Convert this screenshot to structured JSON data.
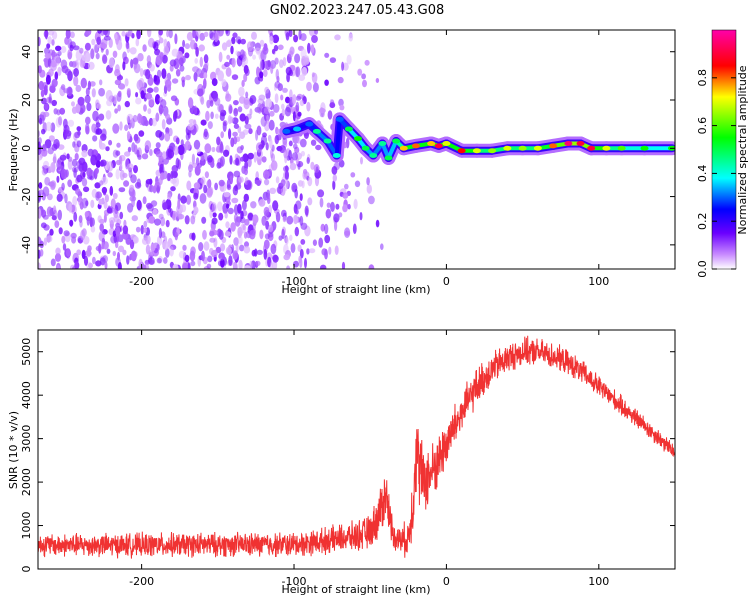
{
  "title": "GN02.2023.247.05.43.G08",
  "chart_data": [
    {
      "type": "heatmap",
      "xlabel": "Height of straight line (km)",
      "ylabel": "Frequency (Hz)",
      "xlim": [
        -268,
        150
      ],
      "ylim": [
        -50,
        49
      ],
      "x_ticks": [
        -200,
        -100,
        0,
        100
      ],
      "x_tick_labels": [
        "-200",
        "-100",
        "0",
        "100"
      ],
      "y_ticks": [
        -40,
        -20,
        0,
        20,
        40
      ],
      "y_tick_labels": [
        "-40",
        "-20",
        "0",
        "20",
        "40"
      ],
      "colorbar": {
        "label": "Normalized spectral amplitude",
        "range": [
          0,
          1
        ],
        "ticks": [
          0.0,
          0.2,
          0.4,
          0.6,
          0.8
        ],
        "tick_labels": [
          "0.0",
          "0.2",
          "0.4",
          "0.6",
          "0.8"
        ],
        "colors": [
          "#ffffff",
          "#7a00ff",
          "#0000ff",
          "#00ffff",
          "#00ff00",
          "#ffff00",
          "#ff0000",
          "#ff00ff"
        ]
      },
      "noise_region": {
        "x_range": [
          -268,
          -40
        ],
        "typical_amplitude": 0.1
      },
      "signal_track": [
        {
          "x": -105,
          "f": 7,
          "amp": 0.3
        },
        {
          "x": -98,
          "f": 8,
          "amp": 0.35
        },
        {
          "x": -90,
          "f": 10,
          "amp": 0.3
        },
        {
          "x": -85,
          "f": 7,
          "amp": 0.45
        },
        {
          "x": -78,
          "f": 3,
          "amp": 0.45
        },
        {
          "x": -72,
          "f": -3,
          "amp": 0.4
        },
        {
          "x": -70,
          "f": 12,
          "amp": 0.3
        },
        {
          "x": -64,
          "f": 8,
          "amp": 0.5
        },
        {
          "x": -58,
          "f": 4,
          "amp": 0.55
        },
        {
          "x": -53,
          "f": 0,
          "amp": 0.5
        },
        {
          "x": -48,
          "f": -3,
          "amp": 0.45
        },
        {
          "x": -42,
          "f": 2,
          "amp": 0.45
        },
        {
          "x": -38,
          "f": -4,
          "amp": 0.5
        },
        {
          "x": -33,
          "f": 3,
          "amp": 0.5
        },
        {
          "x": -28,
          "f": 0,
          "amp": 0.75
        },
        {
          "x": -20,
          "f": 1,
          "amp": 0.8
        },
        {
          "x": -10,
          "f": 2,
          "amp": 0.75
        },
        {
          "x": -5,
          "f": 1,
          "amp": 0.9
        },
        {
          "x": 0,
          "f": 2,
          "amp": 0.7
        },
        {
          "x": 10,
          "f": -1,
          "amp": 0.85
        },
        {
          "x": 20,
          "f": -1,
          "amp": 0.7
        },
        {
          "x": 30,
          "f": -1,
          "amp": 0.65
        },
        {
          "x": 40,
          "f": 0,
          "amp": 0.7
        },
        {
          "x": 50,
          "f": 0,
          "amp": 0.65
        },
        {
          "x": 60,
          "f": 0,
          "amp": 0.7
        },
        {
          "x": 70,
          "f": 1,
          "amp": 0.8
        },
        {
          "x": 80,
          "f": 2,
          "amp": 0.95
        },
        {
          "x": 88,
          "f": 2,
          "amp": 0.9
        },
        {
          "x": 95,
          "f": 0,
          "amp": 0.9
        },
        {
          "x": 105,
          "f": 0,
          "amp": 0.7
        },
        {
          "x": 115,
          "f": 0,
          "amp": 0.6
        },
        {
          "x": 130,
          "f": 0,
          "amp": 0.55
        },
        {
          "x": 148,
          "f": 0,
          "amp": 0.55
        }
      ]
    },
    {
      "type": "line",
      "xlabel": "Height of straight line (km)",
      "ylabel": "SNR (10 * v/v)",
      "xlim": [
        -268,
        150
      ],
      "ylim": [
        0,
        5500
      ],
      "x_ticks": [
        -200,
        -100,
        0,
        100
      ],
      "x_tick_labels": [
        "-200",
        "-100",
        "0",
        "100"
      ],
      "y_ticks": [
        0,
        1000,
        2000,
        3000,
        4000,
        5000
      ],
      "y_tick_labels": [
        "0",
        "1000",
        "2000",
        "3000",
        "4000",
        "5000"
      ],
      "color": "#f03232",
      "envelope": {
        "x": [
          -268,
          -200,
          -150,
          -100,
          -80,
          -60,
          -50,
          -45,
          -40,
          -38,
          -35,
          -30,
          -25,
          -22,
          -20,
          -18,
          -15,
          -10,
          -5,
          0,
          10,
          20,
          30,
          40,
          50,
          60,
          70,
          80,
          90,
          100,
          110,
          120,
          130,
          140,
          150
        ],
        "mean": [
          550,
          550,
          560,
          560,
          650,
          750,
          850,
          1200,
          1700,
          1400,
          800,
          650,
          700,
          1500,
          2800,
          2400,
          2000,
          2200,
          2500,
          2900,
          3600,
          4200,
          4600,
          4850,
          5000,
          5000,
          4900,
          4750,
          4500,
          4200,
          3900,
          3600,
          3300,
          3000,
          2650
        ],
        "noise": [
          300,
          320,
          320,
          330,
          350,
          400,
          450,
          600,
          800,
          600,
          350,
          400,
          500,
          900,
          1200,
          1100,
          900,
          800,
          700,
          650,
          550,
          500,
          450,
          400,
          380,
          360,
          350,
          330,
          320,
          300,
          280,
          260,
          250,
          240,
          230
        ]
      }
    }
  ]
}
